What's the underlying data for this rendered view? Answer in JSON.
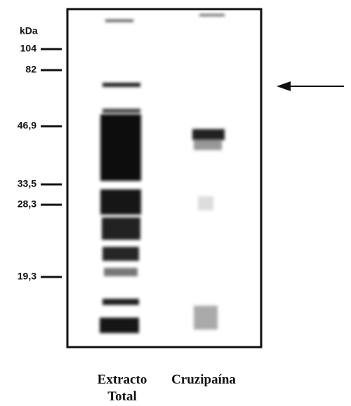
{
  "marker_unit": "kDa",
  "markers": [
    "104",
    "82",
    "46,9",
    "33,5",
    "28,3",
    "19,3"
  ],
  "lanes": [
    [
      "Extracto",
      "Total"
    ],
    [
      "Cruzipaína"
    ]
  ]
}
